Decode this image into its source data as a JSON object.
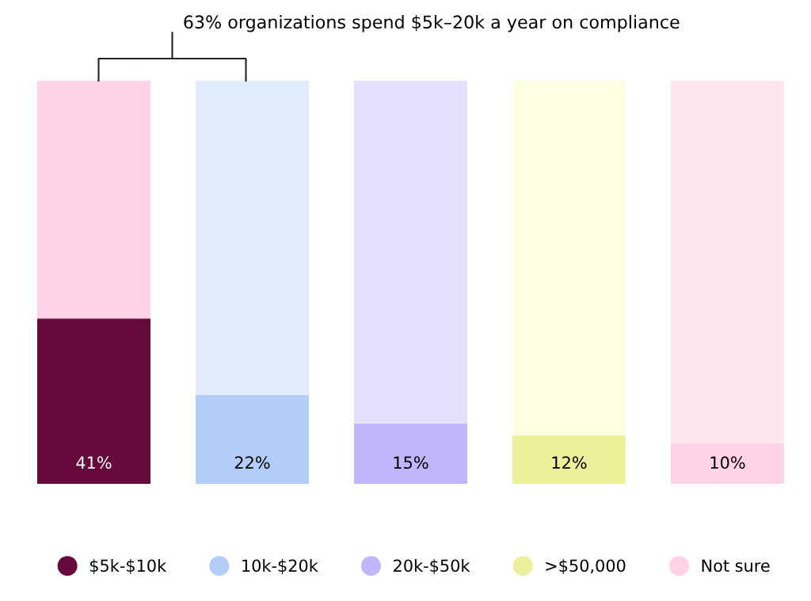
{
  "chart_data": {
    "type": "bar",
    "stacked": true,
    "legend": "bottom",
    "grid": false,
    "tick_labels": false,
    "marker": "circle",
    "categories": [
      null,
      null,
      null,
      null,
      null
    ],
    "annotations": [
      "63% organizations spend $5k–20k a year on compliance"
    ],
    "series": [
      {
        "name": "$5k-$10k",
        "color": "#660a3c",
        "values": [
          41,
          null,
          null,
          null,
          null
        ],
        "value_labels": [
          "41%",
          null,
          null,
          null,
          null
        ]
      },
      {
        "name": "10k-$20k",
        "color": "#b3cdf8",
        "values": [
          null,
          22,
          null,
          null,
          null
        ],
        "value_labels": [
          null,
          "22%",
          null,
          null,
          null
        ]
      },
      {
        "name": "20k-$50k",
        "color": "#c2b5fb",
        "values": [
          null,
          null,
          15,
          null,
          null
        ],
        "value_labels": [
          null,
          null,
          "15%",
          null,
          null
        ]
      },
      {
        "name": ">$50,000",
        "color": "#edf09a",
        "values": [
          null,
          null,
          null,
          12,
          null
        ],
        "value_labels": [
          null,
          null,
          null,
          "12%",
          null
        ]
      },
      {
        "name": "Not sure",
        "color": "#ffd2e6",
        "values": [
          null,
          null,
          null,
          null,
          10
        ],
        "value_labels": [
          null,
          null,
          null,
          null,
          "10%"
        ]
      },
      {
        "colors": [
          "#ffd2e6",
          "#e2ebfc",
          "#e5defd",
          "#fdffe0",
          "#ffe6f0"
        ],
        "values": [
          59,
          78,
          85,
          88,
          90
        ]
      }
    ]
  }
}
